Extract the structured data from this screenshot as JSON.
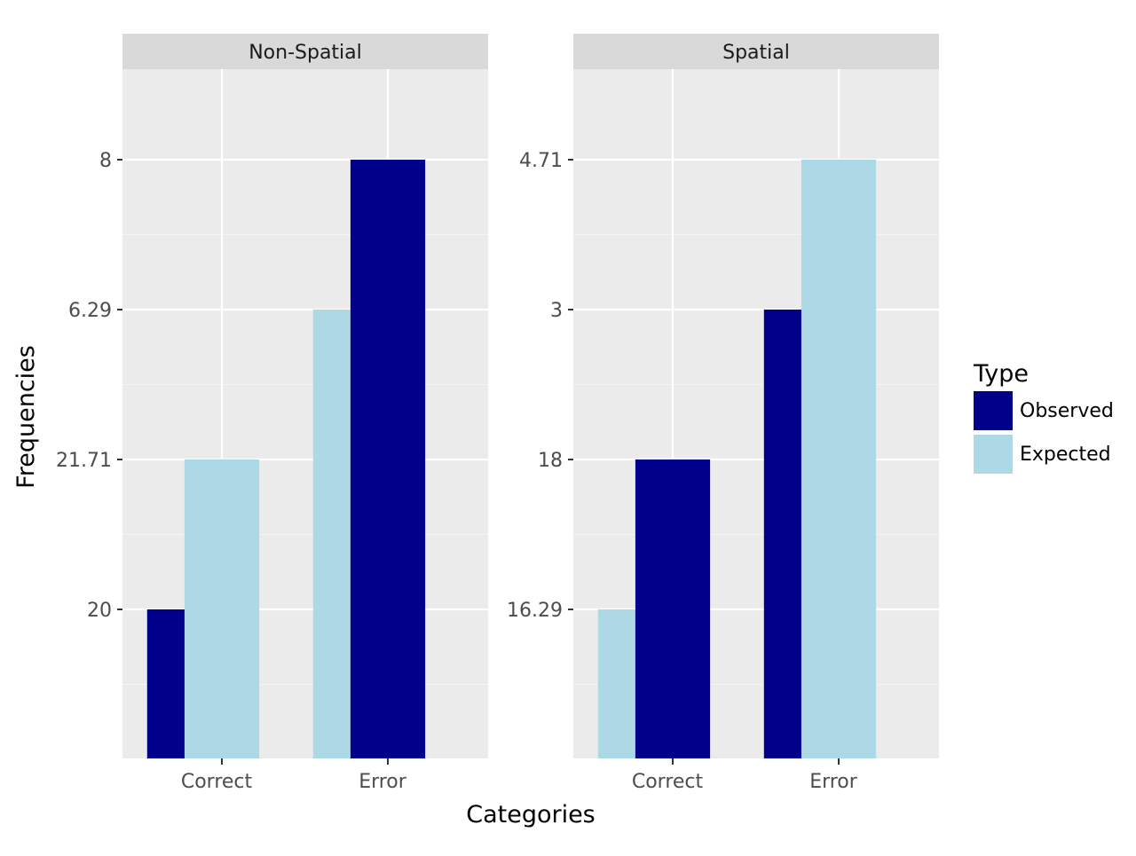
{
  "chart_data": {
    "type": "bar",
    "xlabel": "Categories",
    "ylabel": "Frequencies",
    "legend": {
      "title": "Type",
      "position": "right",
      "entries": [
        {
          "label": "Observed",
          "color": "#00008b"
        },
        {
          "label": "Expected",
          "color": "#add8e6"
        }
      ]
    },
    "grid": true,
    "categories": [
      "Correct",
      "Error"
    ],
    "panels": [
      {
        "title": "Non-Spatial",
        "y_tick_labels": [
          "20",
          "21.71",
          "6.29",
          "8"
        ],
        "series": [
          {
            "name": "Observed",
            "values": [
              "20",
              "8"
            ]
          },
          {
            "name": "Expected",
            "values": [
              "21.71",
              "6.29"
            ]
          }
        ]
      },
      {
        "title": "Spatial",
        "y_tick_labels": [
          "16.29",
          "18",
          "3",
          "4.71"
        ],
        "series": [
          {
            "name": "Observed",
            "values": [
              "18",
              "3"
            ]
          },
          {
            "name": "Expected",
            "values": [
              "16.29",
              "4.71"
            ]
          }
        ]
      }
    ]
  }
}
